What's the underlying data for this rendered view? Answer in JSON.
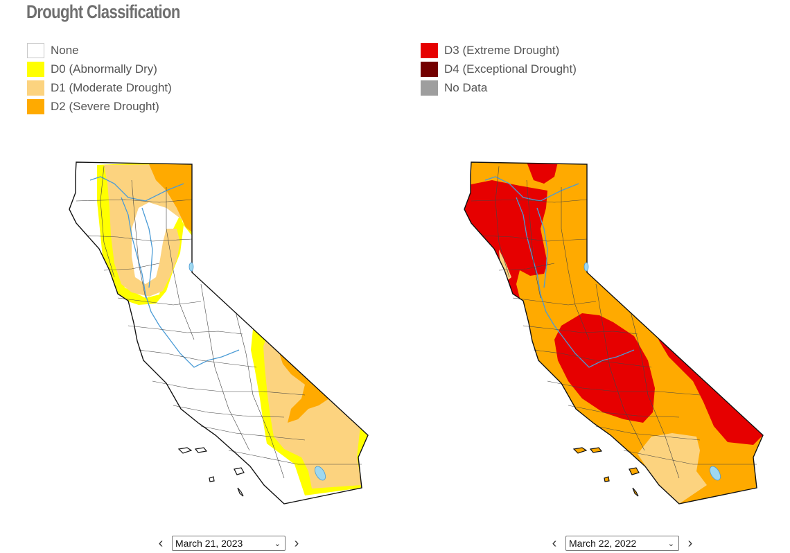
{
  "title": "Drought Classification",
  "legend": [
    {
      "label": "None",
      "color": "#ffffff"
    },
    {
      "label": "D0 (Abnormally Dry)",
      "color": "#ffff00"
    },
    {
      "label": "D1 (Moderate Drought)",
      "color": "#fcd37f"
    },
    {
      "label": "D2 (Severe Drought)",
      "color": "#ffaa00"
    },
    {
      "label": "D3 (Extreme Drought)",
      "color": "#e60000"
    },
    {
      "label": "D4 (Exceptional Drought)",
      "color": "#730000"
    },
    {
      "label": "No Data",
      "color": "#9e9e9e"
    }
  ],
  "maps": [
    {
      "date": "March 21, 2023"
    },
    {
      "date": "March 22, 2022"
    }
  ],
  "icons": {
    "prev": "chevron-left-icon",
    "next": "chevron-right-icon",
    "dropdown": "chevron-down-icon"
  }
}
